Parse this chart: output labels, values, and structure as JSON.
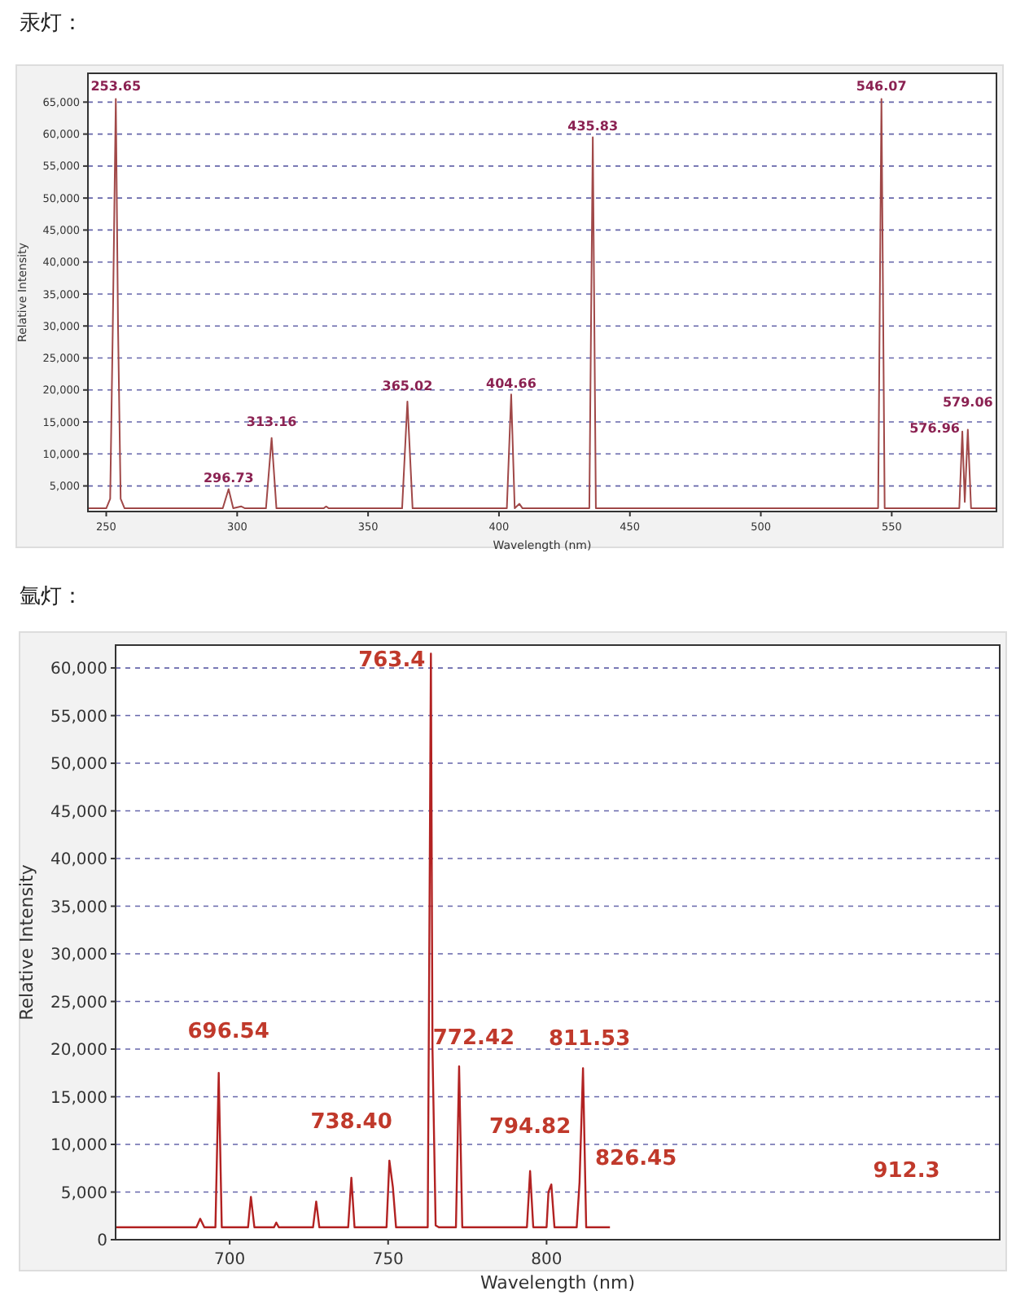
{
  "chart_data": [
    {
      "type": "line",
      "title": "汞灯：",
      "xlabel": "Wavelength (nm)",
      "ylabel": "Relative Intensity",
      "x": [
        243,
        250,
        251.5,
        252.5,
        253.65,
        254.5,
        255.5,
        257,
        294.5,
        296.73,
        298.5,
        301.5,
        303,
        311,
        313.16,
        315,
        333,
        334,
        335,
        363,
        365.02,
        367,
        403,
        404.66,
        406,
        407.8,
        409,
        434.5,
        435.83,
        437,
        544.8,
        546.07,
        547.3,
        575.8,
        576.96,
        577.9,
        579.06,
        580.3,
        590
      ],
      "series": [
        {
          "color": "#a04848",
          "values": [
            1500,
            1500,
            3000,
            30000,
            65500,
            30000,
            3000,
            1500,
            1500,
            4500,
            1500,
            1800,
            1500,
            1500,
            12500,
            1500,
            1500,
            1800,
            1500,
            1500,
            18200,
            1500,
            1500,
            19300,
            1500,
            2200,
            1500,
            1500,
            59500,
            1500,
            1500,
            65500,
            1500,
            1500,
            13500,
            2500,
            13800,
            1500,
            1500
          ]
        }
      ],
      "xlim": [
        243,
        590
      ],
      "ylim": [
        1000,
        69500
      ],
      "xticks": [
        250,
        300,
        350,
        400,
        450,
        500,
        550
      ],
      "yticks": [
        {
          "value": 5000,
          "label": "5,000"
        },
        {
          "value": 10000,
          "label": "10,000"
        },
        {
          "value": 15000,
          "label": "15,000"
        },
        {
          "value": 20000,
          "label": "20,000"
        },
        {
          "value": 25000,
          "label": "25,000"
        },
        {
          "value": 30000,
          "label": "30,000"
        },
        {
          "value": 35000,
          "label": "35,000"
        },
        {
          "value": 40000,
          "label": "40,000"
        },
        {
          "value": 45000,
          "label": "45,000"
        },
        {
          "value": 50000,
          "label": "50,000"
        },
        {
          "value": 55000,
          "label": "55,000"
        },
        {
          "value": 60000,
          "label": "60,000"
        },
        {
          "value": 65000,
          "label": "65,000"
        }
      ],
      "grid": "y",
      "annotations": [
        {
          "text": "253.65",
          "x": 253.65,
          "y": 65500
        },
        {
          "text": "296.73",
          "x": 296.73,
          "y": 4500
        },
        {
          "text": "313.16",
          "x": 313.16,
          "y": 12500
        },
        {
          "text": "365.02",
          "x": 365.02,
          "y": 18200
        },
        {
          "text": "404.66",
          "x": 404.66,
          "y": 19300
        },
        {
          "text": "435.83",
          "x": 435.83,
          "y": 59500
        },
        {
          "text": "546.07",
          "x": 546.07,
          "y": 65500
        },
        {
          "text": "576.96",
          "x": 576.96,
          "y": 13500
        },
        {
          "text": "579.06",
          "x": 579.06,
          "y": 13800
        }
      ]
    },
    {
      "type": "line",
      "title": "氩灯：",
      "xlabel": "Wavelength (nm)",
      "ylabel": "Relative Intensity",
      "x": [
        664,
        689.5,
        690.7,
        692,
        695.5,
        696.54,
        697.5,
        705.8,
        706.7,
        707.8,
        714,
        714.7,
        715.5,
        726.3,
        727.3,
        728.3,
        737.4,
        738.4,
        739.4,
        749.5,
        750.4,
        751.5,
        752.5,
        762.5,
        763.2,
        763.5,
        764,
        765,
        766,
        771.4,
        772.4,
        773.4,
        793.8,
        794.8,
        795.8,
        800,
        800.6,
        801.5,
        802.5,
        809.5,
        810.4,
        811.5,
        812.5,
        820
      ],
      "series": [
        {
          "color": "#b22222",
          "values": [
            1300,
            1300,
            2200,
            1300,
            1300,
            17500,
            1300,
            1300,
            4500,
            1300,
            1300,
            1800,
            1300,
            1300,
            4000,
            1300,
            1300,
            6500,
            1300,
            1300,
            8300,
            5500,
            1300,
            1300,
            43000,
            61500,
            20000,
            1500,
            1300,
            1300,
            18200,
            1300,
            1300,
            7200,
            1300,
            1300,
            5000,
            5800,
            1300,
            1300,
            6000,
            18000,
            1300,
            1300
          ]
        }
      ],
      "xlim": [
        664,
        943
      ],
      "ylim": [
        0,
        62400
      ],
      "xticks": [
        700,
        750,
        800
      ],
      "yticks": [
        0,
        {
          "value": 5000,
          "label": "5,000"
        },
        {
          "value": 10000,
          "label": "10,000"
        },
        {
          "value": 15000,
          "label": "15,000"
        },
        {
          "value": 20000,
          "label": "20,000"
        },
        {
          "value": 25000,
          "label": "25,000"
        },
        {
          "value": 30000,
          "label": "30,000"
        },
        {
          "value": 35000,
          "label": "35,000"
        },
        {
          "value": 40000,
          "label": "40,000"
        },
        {
          "value": 45000,
          "label": "45,000"
        },
        {
          "value": 50000,
          "label": "50,000"
        },
        {
          "value": 55000,
          "label": "55,000"
        },
        {
          "value": 60000,
          "label": "60,000"
        }
      ],
      "grid": "y",
      "annotations": [
        {
          "text": "763.4",
          "x": 763.5,
          "y": 61500
        },
        {
          "text": "696.54",
          "x": 696.54,
          "y": 17500
        },
        {
          "text": "738.40",
          "x": 738.4,
          "y": 6500
        },
        {
          "text": "772.42",
          "x": 772.4,
          "y": 18200
        },
        {
          "text": "794.82",
          "x": 794.8,
          "y": 7200
        },
        {
          "text": "811.53",
          "x": 811.5,
          "y": 18000
        },
        "826.45",
        "912.3"
      ]
    }
  ]
}
